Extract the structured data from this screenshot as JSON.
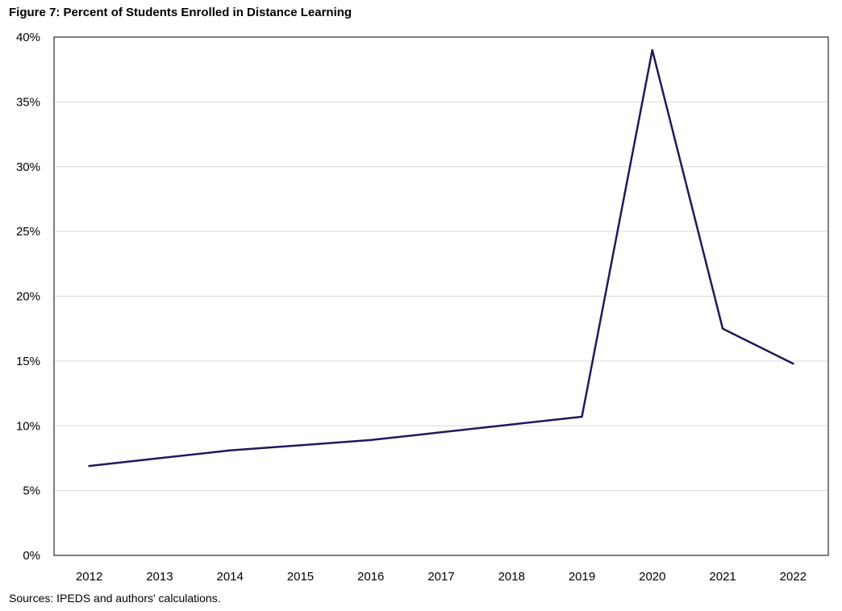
{
  "chart_data": {
    "type": "line",
    "title": "Figure 7: Percent of Students Enrolled in Distance Learning",
    "source": "Sources: IPEDS and authors' calculations.",
    "xlabel": "",
    "ylabel": "",
    "categories": [
      "2012",
      "2013",
      "2014",
      "2015",
      "2016",
      "2017",
      "2018",
      "2019",
      "2020",
      "2021",
      "2022"
    ],
    "series": [
      {
        "values": [
          6.9,
          7.5,
          8.1,
          8.5,
          8.9,
          9.5,
          10.1,
          10.7,
          39.0,
          17.5,
          14.8
        ],
        "color": "#1f1a5c"
      }
    ],
    "ylim": [
      0,
      40
    ],
    "yticks": [
      0,
      5,
      10,
      15,
      20,
      25,
      30,
      35,
      40
    ],
    "ytick_labels": [
      "0%",
      "5%",
      "10%",
      "15%",
      "20%",
      "25%",
      "30%",
      "35%",
      "40%"
    ],
    "grid": true,
    "gridColor": "#d9d9d9",
    "legend": "none"
  }
}
